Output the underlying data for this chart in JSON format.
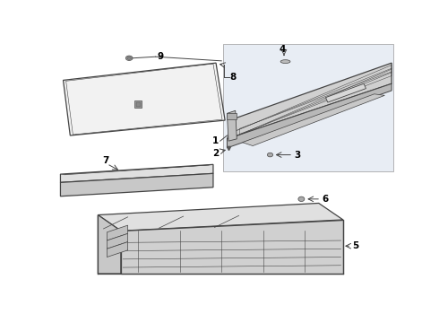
{
  "bg_color": "#ffffff",
  "line_color": "#444444",
  "label_color": "#000000",
  "fill_panel": "#f2f2f2",
  "fill_strip": "#e8e8e8",
  "fill_tray": "#e0e0e0",
  "fill_cover": "#d8d8d8",
  "fill_right_bg": "#e8edf4",
  "fig_width": 4.9,
  "fig_height": 3.6,
  "dpi": 100
}
